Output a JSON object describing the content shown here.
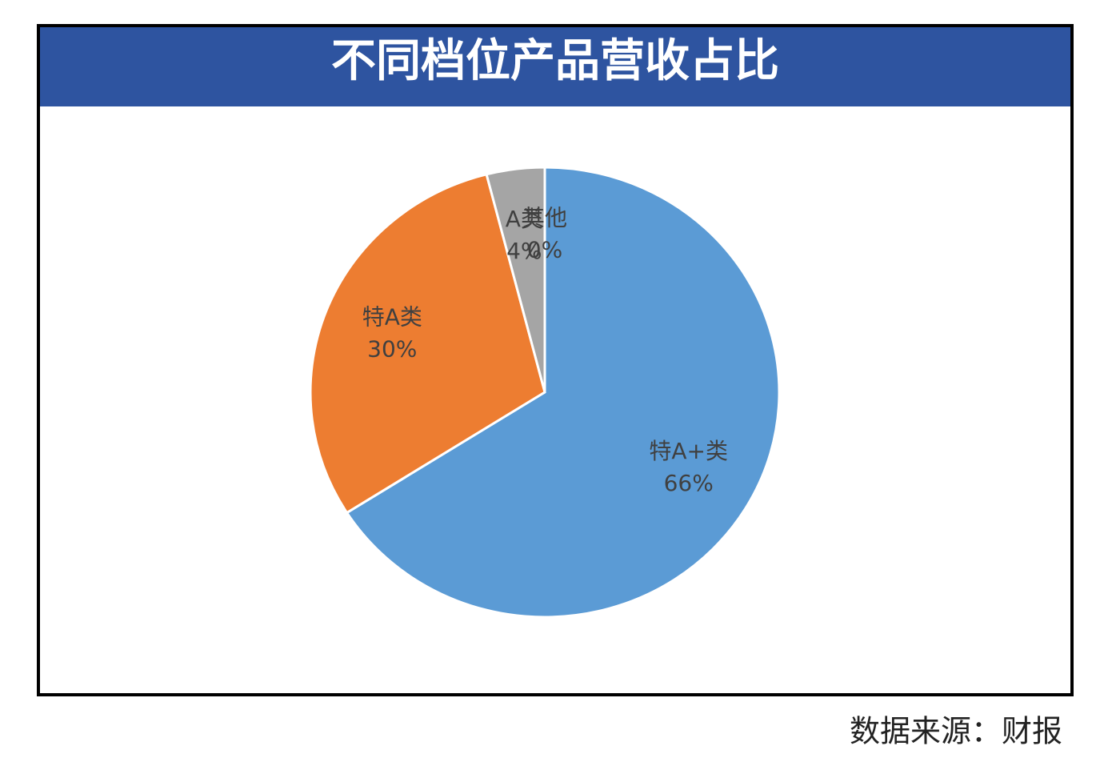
{
  "chart_data": {
    "type": "pie",
    "title": "不同档位产品营收占比",
    "categories": [
      "特A+类",
      "特A类",
      "A类",
      "其他"
    ],
    "values": [
      66,
      30,
      4,
      0
    ],
    "value_labels": [
      "66%",
      "30%",
      "4%",
      "0%"
    ],
    "colors": [
      "#5b9bd5",
      "#ed7d31",
      "#a5a5a5",
      "#ffc000"
    ],
    "source": "数据来源：财报"
  }
}
